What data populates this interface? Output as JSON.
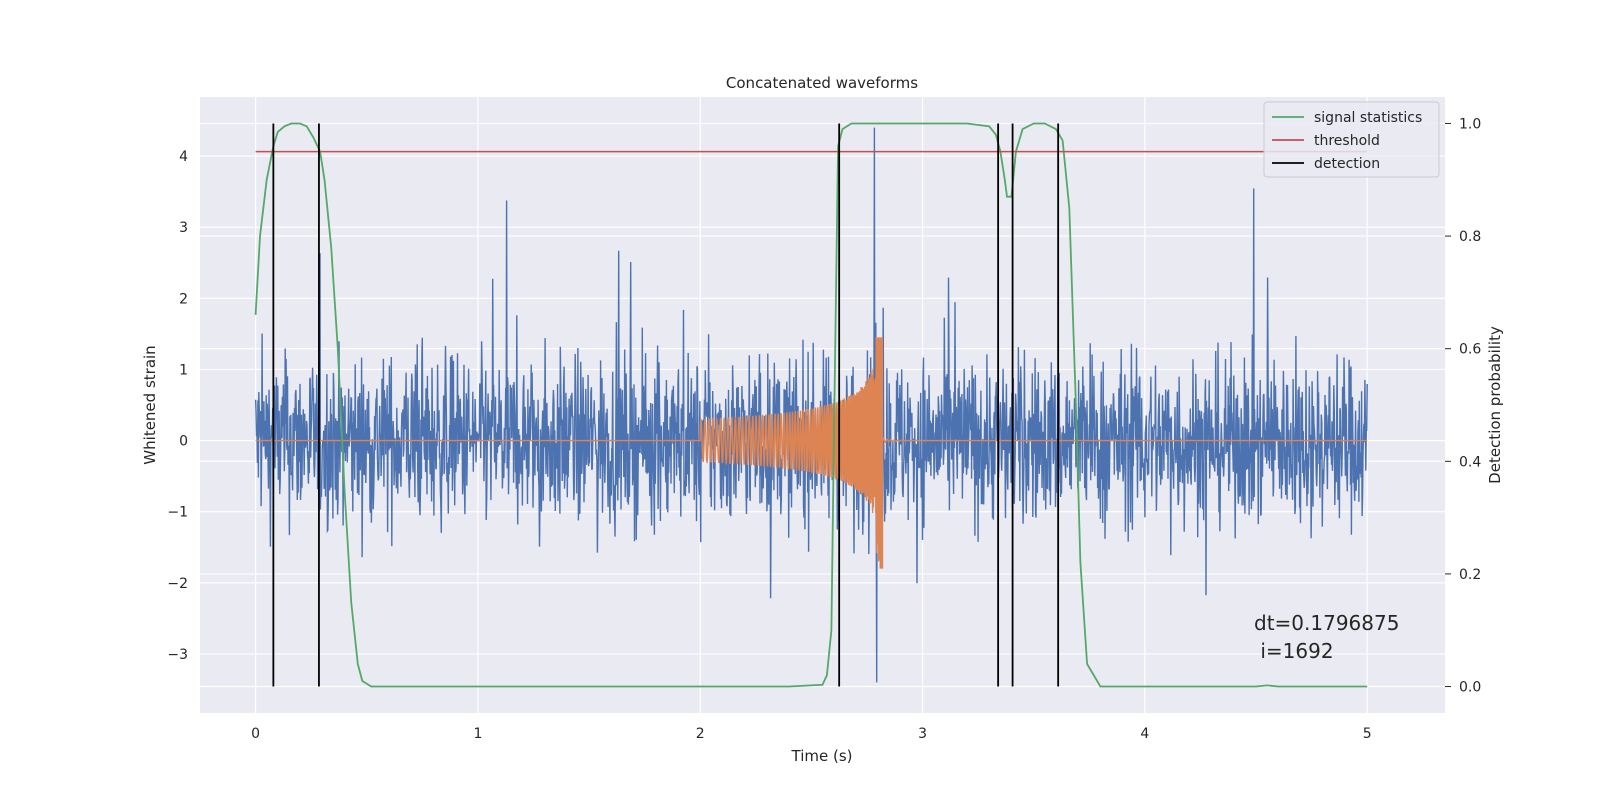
{
  "chart_data": {
    "type": "line",
    "title": "Concatenated waveforms",
    "xlabel": "Time (s)",
    "ylabel": "Whitened strain",
    "ylabel_right": "Detection probability",
    "xlim": [
      -0.25,
      5.35
    ],
    "ylim": [
      -3.83,
      4.83
    ],
    "ylim_right": [
      -0.047,
      1.047
    ],
    "x_ticks": [
      "0",
      "1",
      "2",
      "3",
      "4",
      "5"
    ],
    "y_ticks": [
      "4",
      "3",
      "2",
      "1",
      "0",
      "−1",
      "−2",
      "−3"
    ],
    "y_ticks_right": [
      "1.0",
      "0.8",
      "0.6",
      "0.4",
      "0.2",
      "0.0"
    ],
    "grid": true,
    "legend_position": "top-right",
    "legend": [
      {
        "label": "signal statistics",
        "color": "#55a868"
      },
      {
        "label": "threshold",
        "color": "#c44e52"
      },
      {
        "label": "detection",
        "color": "#000000"
      }
    ],
    "annotation": {
      "line1": "dt=0.1796875",
      "line2": " i=1692"
    },
    "series": [
      {
        "role": "whitened-strain",
        "color": "#4c72b0",
        "axis": "left",
        "description_values": {
          "x_start": 0,
          "x_end": 5,
          "typical_amplitude": 1.5,
          "max": 4.55,
          "min": -3.45
        }
      },
      {
        "role": "injected-waveform",
        "color": "#dd8452",
        "axis": "left",
        "chirp": {
          "t_start": 2.0,
          "t_merger": 2.8,
          "t_end": 3.0,
          "amplitude_start": 0.3,
          "amplitude_peak": 1.45,
          "amplitude_min": -1.8
        }
      },
      {
        "name": "signal statistics",
        "color": "#55a868",
        "axis": "right",
        "x": [
          0,
          0.02,
          0.05,
          0.08,
          0.1,
          0.13,
          0.16,
          0.2,
          0.23,
          0.26,
          0.29,
          0.31,
          0.34,
          0.37,
          0.4,
          0.43,
          0.46,
          0.48,
          0.52,
          0.6,
          1.0,
          1.5,
          2.0,
          2.4,
          2.55,
          2.57,
          2.59,
          2.6,
          2.62,
          2.64,
          2.68,
          2.8,
          3.0,
          3.2,
          3.3,
          3.33,
          3.35,
          3.37,
          3.38,
          3.4,
          3.42,
          3.45,
          3.5,
          3.55,
          3.6,
          3.63,
          3.66,
          3.69,
          3.71,
          3.74,
          3.8,
          4.0,
          4.5,
          4.55,
          4.6,
          4.7,
          5.0
        ],
        "y": [
          0.66,
          0.8,
          0.9,
          0.96,
          0.985,
          0.995,
          1.0,
          1.0,
          0.995,
          0.975,
          0.95,
          0.9,
          0.78,
          0.6,
          0.35,
          0.15,
          0.04,
          0.01,
          0.0,
          0.0,
          0.0,
          0.0,
          0.0,
          0.0,
          0.003,
          0.02,
          0.1,
          0.4,
          0.96,
          0.99,
          1.0,
          1.0,
          1.0,
          1.0,
          0.995,
          0.98,
          0.95,
          0.9,
          0.87,
          0.87,
          0.95,
          0.99,
          1.0,
          1.0,
          0.99,
          0.97,
          0.85,
          0.5,
          0.22,
          0.04,
          0.0,
          0.0,
          0.0,
          0.002,
          0.0,
          0.0,
          0.0
        ]
      },
      {
        "name": "threshold",
        "color": "#c44e52",
        "axis": "right",
        "x": [
          0,
          5
        ],
        "y": [
          0.95,
          0.95
        ]
      },
      {
        "name": "detection",
        "color": "#000000",
        "axis": "right",
        "type": "vlines",
        "x": [
          0.08,
          0.285,
          2.625,
          3.34,
          3.405,
          3.61
        ],
        "y_range": [
          0.0,
          1.0
        ]
      }
    ]
  }
}
